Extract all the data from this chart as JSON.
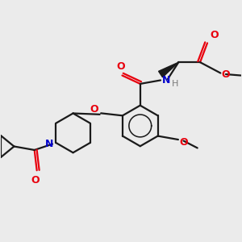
{
  "bg_color": "#ebebeb",
  "bond_color": "#1a1a1a",
  "oxygen_color": "#e8000d",
  "nitrogen_color": "#0000cc",
  "h_color": "#7a7a7a",
  "line_width": 1.6,
  "figsize": [
    3.0,
    3.0
  ],
  "dpi": 100,
  "xlim": [
    0,
    10
  ],
  "ylim": [
    0,
    10
  ]
}
